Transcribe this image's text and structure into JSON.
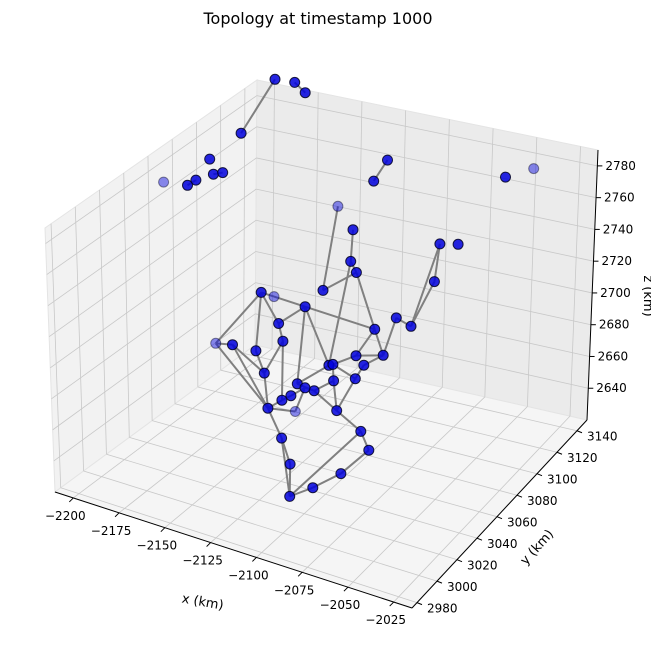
{
  "chart_data": {
    "type": "scatter",
    "projection": "3d",
    "title": "Topology at timestamp 1000",
    "xlabel": "x (km)",
    "ylabel": "y (km)",
    "zlabel": "z (km)",
    "xlim": [
      -2210,
      -2015
    ],
    "ylim": [
      2975,
      3150
    ],
    "zlim": [
      2620,
      2790
    ],
    "xticks": [
      -2200,
      -2175,
      -2150,
      -2125,
      -2100,
      -2075,
      -2050,
      -2025
    ],
    "yticks": [
      2980,
      3000,
      3020,
      3040,
      3060,
      3080,
      3100,
      3120,
      3140
    ],
    "zticks": [
      2640,
      2660,
      2680,
      2700,
      2720,
      2740,
      2760,
      2780
    ],
    "grid": true,
    "marker_color": "#0000dd",
    "edge_color": "#808080",
    "points": [
      [
        -2200,
        3070,
        2735
      ],
      [
        -2185,
        3075,
        2738
      ],
      [
        -2188,
        3072,
        2736
      ],
      [
        -2177,
        3078,
        2742
      ],
      [
        -2173,
        3080,
        2743
      ],
      [
        -2168,
        3090,
        2760
      ],
      [
        -2160,
        3110,
        2780
      ],
      [
        -2152,
        3115,
        2778
      ],
      [
        -2148,
        3118,
        2772
      ],
      [
        -2162,
        3050,
        2672
      ],
      [
        -2142,
        3060,
        2700
      ],
      [
        -2140,
        3050,
        2675
      ],
      [
        -2150,
        3045,
        2678
      ],
      [
        -2130,
        3040,
        2672
      ],
      [
        -2125,
        3050,
        2685
      ],
      [
        -2130,
        3055,
        2690
      ],
      [
        -2118,
        3060,
        2700
      ],
      [
        -2135,
        3060,
        2700
      ],
      [
        -2112,
        3040,
        2672
      ],
      [
        -2100,
        3050,
        2680
      ],
      [
        -2098,
        3070,
        2725
      ],
      [
        -2102,
        3080,
        2735
      ],
      [
        -2090,
        3080,
        2765
      ],
      [
        -2085,
        3085,
        2775
      ],
      [
        -2110,
        3080,
        2745
      ],
      [
        -2108,
        3060,
        2712
      ],
      [
        -2095,
        3070,
        2720
      ],
      [
        -2080,
        3060,
        2700
      ],
      [
        -2085,
        3050,
        2690
      ],
      [
        -2095,
        3045,
        2685
      ],
      [
        -2092,
        3040,
        2680
      ],
      [
        -2100,
        3035,
        2675
      ],
      [
        -2105,
        3035,
        2675
      ],
      [
        -2110,
        3030,
        2672
      ],
      [
        -2115,
        3030,
        2668
      ],
      [
        -2120,
        3025,
        2665
      ],
      [
        -2105,
        3025,
        2668
      ],
      [
        -2085,
        3030,
        2672
      ],
      [
        -2080,
        3040,
        2685
      ],
      [
        -2078,
        3045,
        2690
      ],
      [
        -2070,
        3050,
        2695
      ],
      [
        -2068,
        3060,
        2710
      ],
      [
        -2060,
        3060,
        2708
      ],
      [
        -2055,
        3075,
        2725
      ],
      [
        -2060,
        3090,
        2735
      ],
      [
        -2050,
        3090,
        2738
      ],
      [
        -2040,
        3120,
        2760
      ],
      [
        -2030,
        3130,
        2762
      ],
      [
        -2095,
        3000,
        2640
      ],
      [
        -2085,
        3005,
        2645
      ],
      [
        -2075,
        3015,
        2650
      ],
      [
        -2065,
        3025,
        2660
      ],
      [
        -2072,
        3030,
        2665
      ],
      [
        -2100,
        3010,
        2650
      ],
      [
        -2110,
        3020,
        2655
      ],
      [
        -2180,
        3080,
        2748
      ]
    ],
    "edges": [
      [
        1,
        2
      ],
      [
        3,
        4
      ],
      [
        5,
        6
      ],
      [
        7,
        8
      ],
      [
        9,
        10
      ],
      [
        9,
        12
      ],
      [
        10,
        11
      ],
      [
        10,
        15
      ],
      [
        11,
        13
      ],
      [
        12,
        13
      ],
      [
        13,
        14
      ],
      [
        14,
        15
      ],
      [
        15,
        16
      ],
      [
        16,
        17
      ],
      [
        17,
        10
      ],
      [
        16,
        18
      ],
      [
        18,
        19
      ],
      [
        19,
        16
      ],
      [
        19,
        20
      ],
      [
        20,
        21
      ],
      [
        20,
        26
      ],
      [
        22,
        23
      ],
      [
        24,
        25
      ],
      [
        25,
        26
      ],
      [
        26,
        27
      ],
      [
        27,
        28
      ],
      [
        28,
        29
      ],
      [
        29,
        30
      ],
      [
        30,
        31
      ],
      [
        31,
        32
      ],
      [
        32,
        33
      ],
      [
        33,
        34
      ],
      [
        34,
        35
      ],
      [
        35,
        36
      ],
      [
        36,
        32
      ],
      [
        30,
        37
      ],
      [
        37,
        38
      ],
      [
        38,
        39
      ],
      [
        39,
        40
      ],
      [
        40,
        41
      ],
      [
        41,
        42
      ],
      [
        42,
        43
      ],
      [
        43,
        44
      ],
      [
        44,
        42
      ],
      [
        40,
        28
      ],
      [
        38,
        29
      ],
      [
        14,
        34
      ],
      [
        13,
        35
      ],
      [
        12,
        35
      ],
      [
        9,
        35
      ],
      [
        18,
        31
      ],
      [
        31,
        37
      ],
      [
        16,
        27
      ],
      [
        27,
        40
      ],
      [
        48,
        49
      ],
      [
        49,
        50
      ],
      [
        50,
        51
      ],
      [
        51,
        52
      ],
      [
        52,
        48
      ],
      [
        48,
        53
      ],
      [
        53,
        54
      ],
      [
        54,
        48
      ],
      [
        52,
        37
      ],
      [
        54,
        35
      ]
    ],
    "faded_points": [
      0,
      9,
      17,
      24,
      36,
      47
    ]
  }
}
